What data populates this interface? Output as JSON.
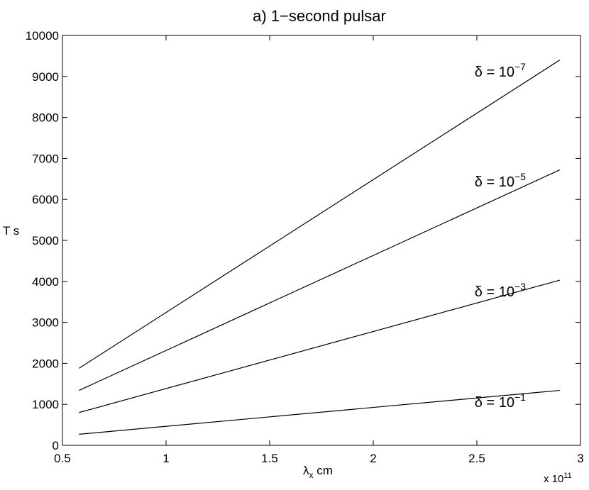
{
  "chart_data": {
    "type": "line",
    "title": "a) 1−second pulsar",
    "xlabel": "λ",
    "xlabel_sub": "x",
    "xlabel_unit": "cm",
    "ylabel": "T s",
    "x_multiplier_prefix": "x 10",
    "x_multiplier_exp": "11",
    "xlim": [
      0.5,
      3
    ],
    "ylim": [
      0,
      10000
    ],
    "xticks": [
      "0.5",
      "1",
      "1.5",
      "2",
      "2.5",
      "3"
    ],
    "xtick_values": [
      0.5,
      1,
      1.5,
      2,
      2.5,
      3
    ],
    "yticks": [
      "0",
      "1000",
      "2000",
      "3000",
      "4000",
      "5000",
      "6000",
      "7000",
      "8000",
      "9000",
      "10000"
    ],
    "ytick_values": [
      0,
      1000,
      2000,
      3000,
      4000,
      5000,
      6000,
      7000,
      8000,
      9000,
      10000
    ],
    "grid": false,
    "legend": "none",
    "series": [
      {
        "label_base": "δ = 10",
        "label_exp": "−7",
        "x": [
          0.58,
          2.9
        ],
        "y": [
          1880,
          9400
        ]
      },
      {
        "label_base": "δ = 10",
        "label_exp": "−5",
        "x": [
          0.58,
          2.9
        ],
        "y": [
          1340,
          6720
        ]
      },
      {
        "label_base": "δ = 10",
        "label_exp": "−3",
        "x": [
          0.58,
          2.9
        ],
        "y": [
          800,
          4030
        ]
      },
      {
        "label_base": "δ = 10",
        "label_exp": "−1",
        "x": [
          0.58,
          2.9
        ],
        "y": [
          270,
          1340
        ]
      }
    ],
    "line_color": "#000000"
  }
}
